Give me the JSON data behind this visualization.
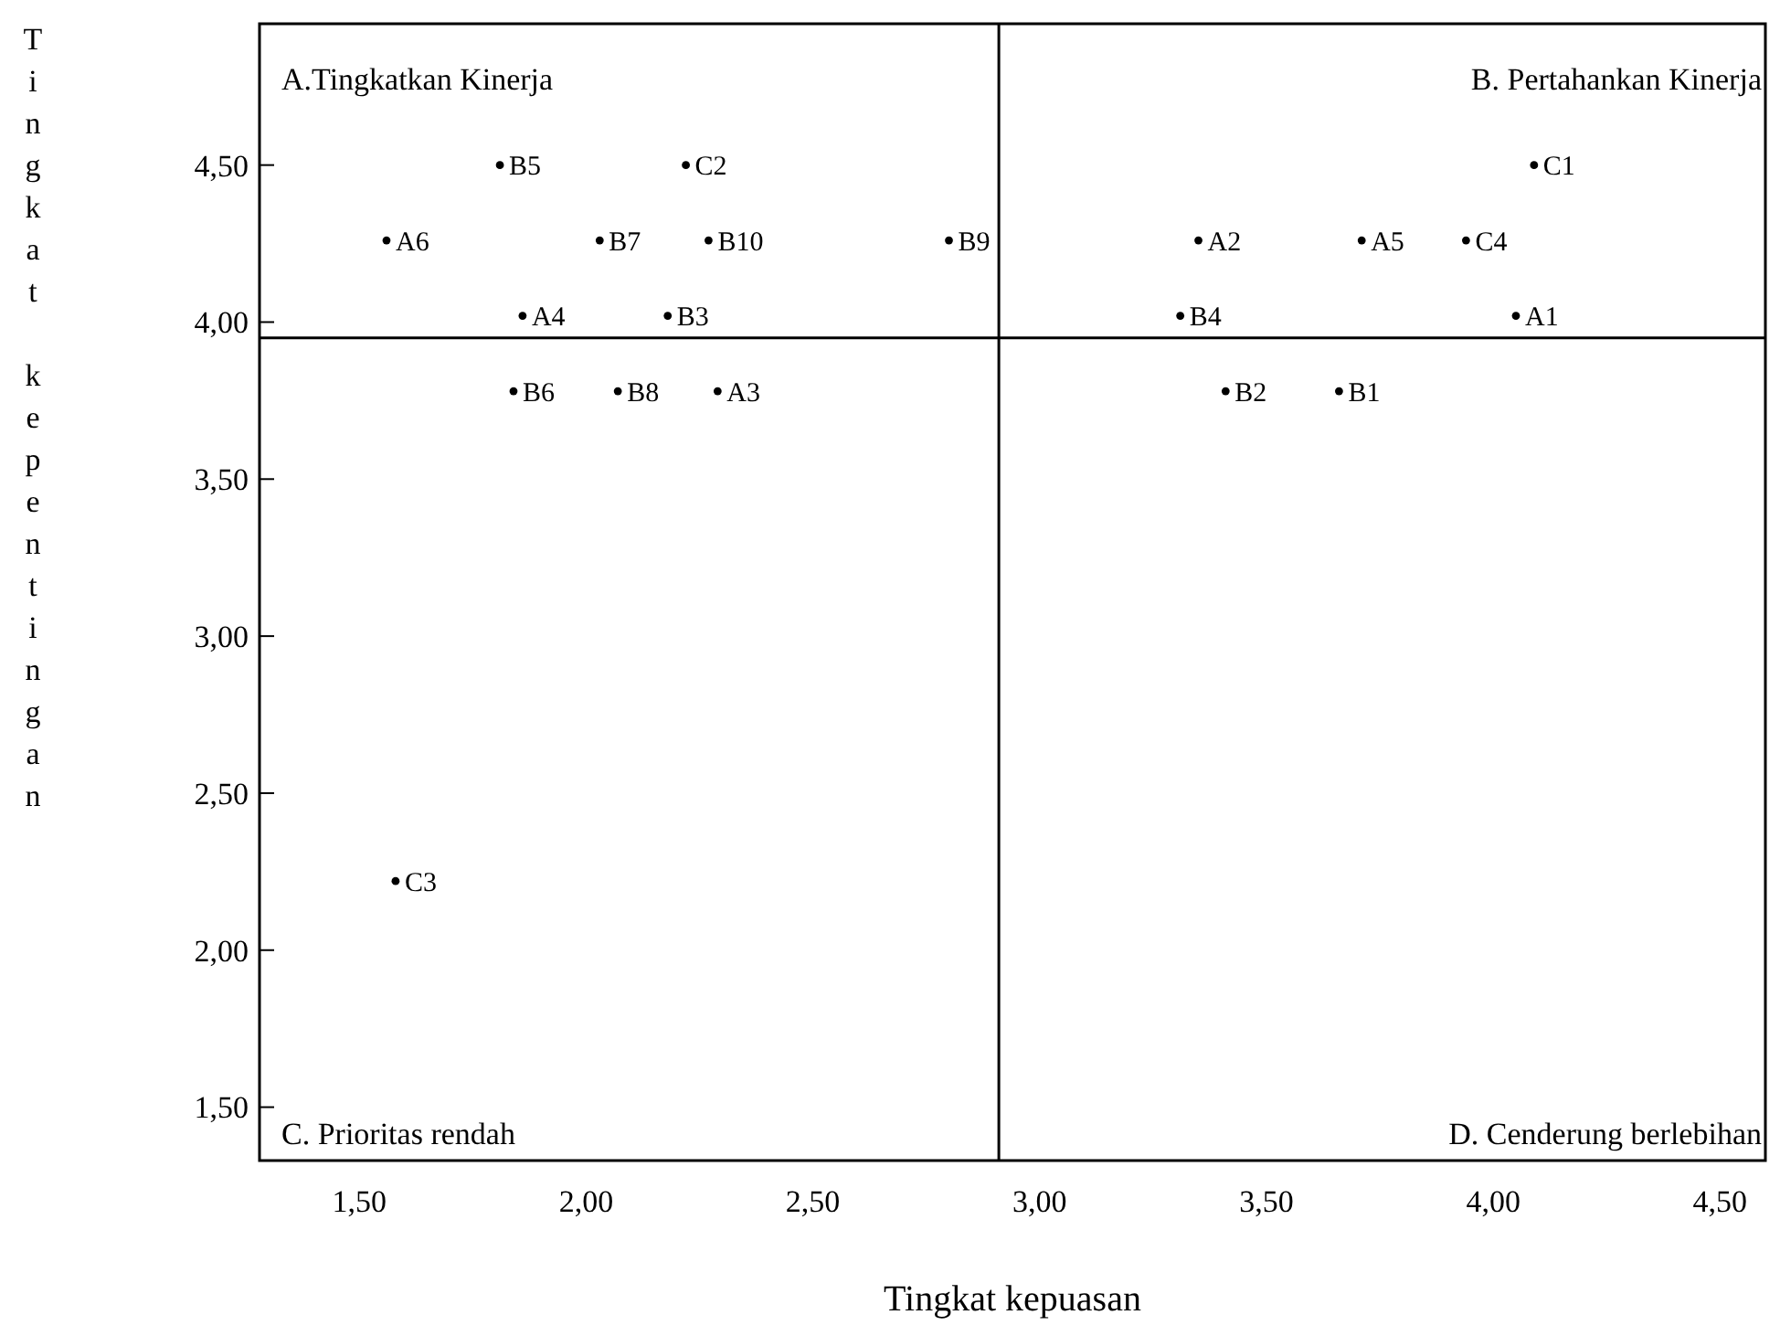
{
  "chart_data": {
    "type": "scatter",
    "xlabel": "Tingkat kepuasan",
    "ylabel": "Tingkat  kepentingan",
    "xlim": [
      1.28,
      4.6
    ],
    "ylim": [
      1.33,
      4.95
    ],
    "xticks": [
      {
        "value": 1.5,
        "label": "1,50"
      },
      {
        "value": 2,
        "label": "2,00"
      },
      {
        "value": 2.5,
        "label": "2,50"
      },
      {
        "value": 3,
        "label": "3,00"
      },
      {
        "value": 3.5,
        "label": "3,50"
      },
      {
        "value": 4,
        "label": "4,00"
      },
      {
        "value": 4.5,
        "label": "4,50"
      }
    ],
    "yticks": [
      {
        "value": 1.5,
        "label": "1,50"
      },
      {
        "value": 2,
        "label": "2,00"
      },
      {
        "value": 2.5,
        "label": "2,50"
      },
      {
        "value": 3,
        "label": "3,00"
      },
      {
        "value": 3.5,
        "label": "3,50"
      },
      {
        "value": 4,
        "label": "4,00"
      },
      {
        "value": 4.5,
        "label": "4,50"
      }
    ],
    "series": [
      {
        "color": "#000000",
        "x": [
          4.05,
          3.35,
          2.29,
          1.86,
          3.71,
          1.56,
          3.66,
          3.41,
          2.18,
          3.31,
          1.81,
          1.84,
          2.03,
          2.07,
          2.8,
          2.27,
          4.09,
          2.22,
          1.58,
          3.94
        ],
        "values": [
          4.02,
          4.26,
          3.78,
          4.02,
          4.26,
          4.26,
          3.78,
          3.78,
          4.02,
          4.02,
          4.5,
          3.78,
          4.26,
          3.78,
          4.26,
          4.26,
          4.5,
          4.5,
          2.22,
          4.26
        ]
      }
    ],
    "marker": "circle",
    "grid": false,
    "ref_lines": [
      {
        "axis": "x",
        "value": 2.91,
        "color": "#000000"
      },
      {
        "axis": "y",
        "value": 3.95,
        "color": "#000000"
      }
    ],
    "annotations": [
      "A.Tingkatkan Kinerja",
      "B. Pertahankan Kinerja",
      "C. Prioritas rendah",
      "D. Cenderung berlebihan",
      {
        "text": "A1",
        "x": 4.05,
        "y": 4.02
      },
      {
        "text": "A2",
        "x": 3.35,
        "y": 4.26
      },
      {
        "text": "A3",
        "x": 2.29,
        "y": 3.78
      },
      {
        "text": "A4",
        "x": 1.86,
        "y": 4.02
      },
      {
        "text": "A5",
        "x": 3.71,
        "y": 4.26
      },
      {
        "text": "A6",
        "x": 1.56,
        "y": 4.26
      },
      {
        "text": "B1",
        "x": 3.66,
        "y": 3.78
      },
      {
        "text": "B2",
        "x": 3.41,
        "y": 3.78
      },
      {
        "text": "B3",
        "x": 2.18,
        "y": 4.02
      },
      {
        "text": "B4",
        "x": 3.31,
        "y": 4.02
      },
      {
        "text": "B5",
        "x": 1.81,
        "y": 4.5
      },
      {
        "text": "B6",
        "x": 1.84,
        "y": 3.78
      },
      {
        "text": "B7",
        "x": 2.03,
        "y": 4.26
      },
      {
        "text": "B8",
        "x": 2.07,
        "y": 3.78
      },
      {
        "text": "B9",
        "x": 2.8,
        "y": 4.26
      },
      {
        "text": "B10",
        "x": 2.27,
        "y": 4.26
      },
      {
        "text": "C1",
        "x": 4.09,
        "y": 4.5
      },
      {
        "text": "C2",
        "x": 2.22,
        "y": 4.5
      },
      {
        "text": "C3",
        "x": 1.58,
        "y": 2.22
      },
      {
        "text": "C4",
        "x": 3.94,
        "y": 4.26
      }
    ]
  }
}
